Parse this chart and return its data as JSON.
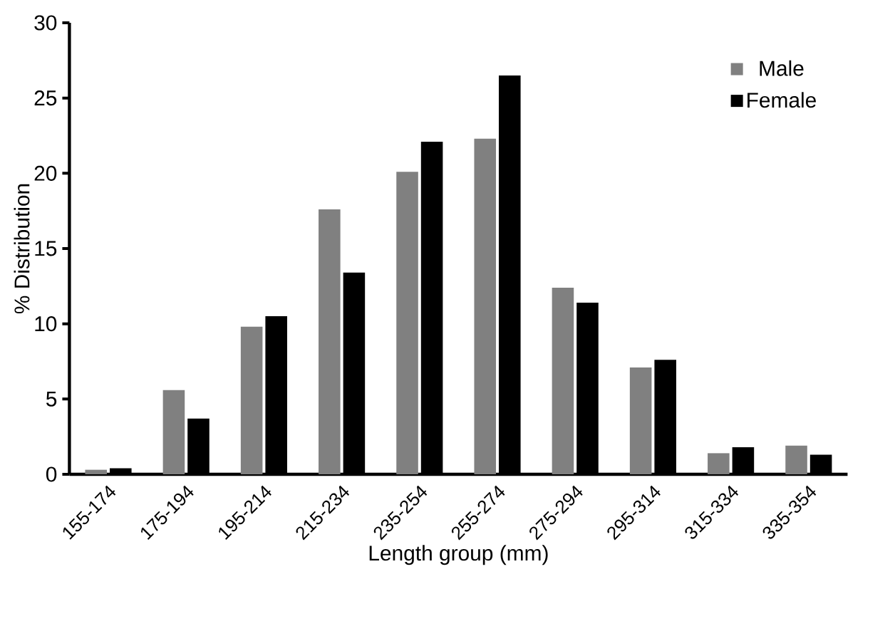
{
  "chart_data": {
    "type": "bar",
    "xlabel": "Length group (mm)",
    "ylabel": "% Distribution",
    "categories": [
      "155-174",
      "175-194",
      "195-214",
      "215-234",
      "235-254",
      "255-274",
      "275-294",
      "295-314",
      "315-334",
      "335-354"
    ],
    "series": [
      {
        "name": "Male",
        "color": "#808080",
        "values": [
          0.3,
          5.6,
          9.8,
          17.6,
          20.1,
          22.3,
          12.4,
          7.1,
          1.4,
          1.9
        ]
      },
      {
        "name": "Female",
        "color": "#000000",
        "values": [
          0.4,
          3.7,
          10.5,
          13.4,
          22.1,
          26.5,
          11.4,
          7.6,
          1.8,
          1.3
        ]
      }
    ],
    "ylim": [
      0,
      30
    ],
    "yticks": [
      0,
      5,
      10,
      15,
      20,
      25,
      30
    ],
    "grid": false,
    "legend": "top right"
  }
}
